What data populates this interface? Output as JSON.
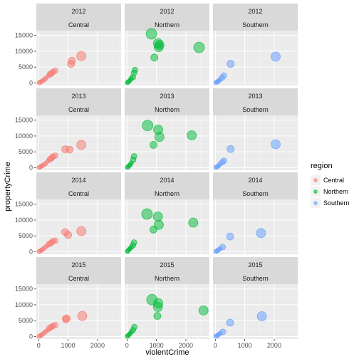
{
  "chart_data": {
    "type": "scatter",
    "facet_rows": [
      "2012",
      "2013",
      "2014",
      "2015"
    ],
    "facet_cols": [
      "Central",
      "Northern",
      "Southern"
    ],
    "xlabel": "violentCrime",
    "ylabel": "propertyCrime",
    "xlim": [
      -80,
      2800
    ],
    "ylim": [
      -800,
      16500
    ],
    "x_ticks": [
      0,
      1000,
      2000
    ],
    "y_ticks": [
      0,
      5000,
      10000,
      15000
    ],
    "grid": true,
    "legend": {
      "title": "region",
      "position": "right",
      "entries": [
        "Central",
        "Northern",
        "Southern"
      ]
    },
    "colors": {
      "Central": "#f8766d",
      "Northern": "#00ba38",
      "Southern": "#619cff"
    },
    "point_alpha": 0.5,
    "size_note": "point size encodes population (larger = bigger city)",
    "series": [
      {
        "year": "2012",
        "region": "Central",
        "points": [
          [
            20,
            100,
            1
          ],
          [
            60,
            300,
            1
          ],
          [
            120,
            600,
            1
          ],
          [
            180,
            900,
            1
          ],
          [
            230,
            1400,
            1
          ],
          [
            300,
            2000,
            1
          ],
          [
            380,
            2700,
            2
          ],
          [
            430,
            3000,
            2
          ],
          [
            480,
            3400,
            2
          ],
          [
            560,
            3900,
            2
          ],
          [
            1100,
            6000,
            3
          ],
          [
            1130,
            7000,
            3
          ],
          [
            1450,
            8500,
            4
          ]
        ]
      },
      {
        "year": "2012",
        "region": "Northern",
        "points": [
          [
            10,
            100,
            1
          ],
          [
            40,
            300,
            1
          ],
          [
            80,
            600,
            1
          ],
          [
            110,
            1000,
            1
          ],
          [
            150,
            1500,
            1
          ],
          [
            200,
            1800,
            2
          ],
          [
            240,
            3200,
            2
          ],
          [
            270,
            4100,
            2
          ],
          [
            930,
            8000,
            3
          ],
          [
            1050,
            12500,
            4
          ],
          [
            1080,
            11300,
            4
          ],
          [
            1100,
            12000,
            4
          ],
          [
            830,
            15500,
            5
          ],
          [
            2450,
            11200,
            5
          ]
        ]
      },
      {
        "year": "2012",
        "region": "Southern",
        "points": [
          [
            20,
            100,
            1
          ],
          [
            60,
            300,
            1
          ],
          [
            110,
            600,
            1
          ],
          [
            150,
            1000,
            1
          ],
          [
            220,
            1600,
            2
          ],
          [
            290,
            2300,
            2
          ],
          [
            520,
            6000,
            3
          ],
          [
            2050,
            8300,
            4
          ]
        ]
      },
      {
        "year": "2013",
        "region": "Central",
        "points": [
          [
            20,
            100,
            1
          ],
          [
            60,
            300,
            1
          ],
          [
            110,
            600,
            1
          ],
          [
            170,
            900,
            1
          ],
          [
            230,
            1300,
            1
          ],
          [
            300,
            2000,
            1
          ],
          [
            380,
            2600,
            2
          ],
          [
            430,
            3000,
            2
          ],
          [
            480,
            3500,
            2
          ],
          [
            560,
            3800,
            2
          ],
          [
            900,
            5800,
            3
          ],
          [
            1050,
            5700,
            3
          ],
          [
            1450,
            7200,
            4
          ]
        ]
      },
      {
        "year": "2013",
        "region": "Northern",
        "points": [
          [
            10,
            100,
            1
          ],
          [
            40,
            300,
            1
          ],
          [
            80,
            700,
            1
          ],
          [
            110,
            1000,
            1
          ],
          [
            150,
            1500,
            1
          ],
          [
            210,
            2500,
            2
          ],
          [
            240,
            3600,
            2
          ],
          [
            900,
            7200,
            3
          ],
          [
            1060,
            12000,
            4
          ],
          [
            1100,
            9700,
            4
          ],
          [
            700,
            13300,
            5
          ],
          [
            2200,
            10200,
            4
          ]
        ]
      },
      {
        "year": "2013",
        "region": "Southern",
        "points": [
          [
            20,
            100,
            1
          ],
          [
            60,
            300,
            1
          ],
          [
            110,
            600,
            1
          ],
          [
            150,
            1100,
            1
          ],
          [
            230,
            1700,
            2
          ],
          [
            290,
            2200,
            2
          ],
          [
            520,
            5900,
            3
          ],
          [
            2050,
            7400,
            4
          ]
        ]
      },
      {
        "year": "2014",
        "region": "Central",
        "points": [
          [
            20,
            100,
            1
          ],
          [
            60,
            300,
            1
          ],
          [
            110,
            600,
            1
          ],
          [
            170,
            1000,
            1
          ],
          [
            230,
            1500,
            1
          ],
          [
            300,
            2000,
            1
          ],
          [
            360,
            2500,
            2
          ],
          [
            420,
            2800,
            2
          ],
          [
            480,
            3300,
            2
          ],
          [
            560,
            3500,
            2
          ],
          [
            900,
            6200,
            3
          ],
          [
            1000,
            5300,
            3
          ],
          [
            1450,
            6500,
            4
          ]
        ]
      },
      {
        "year": "2014",
        "region": "Northern",
        "points": [
          [
            10,
            100,
            1
          ],
          [
            40,
            400,
            1
          ],
          [
            80,
            800,
            1
          ],
          [
            110,
            1100,
            1
          ],
          [
            150,
            1500,
            1
          ],
          [
            200,
            2000,
            2
          ],
          [
            240,
            2900,
            2
          ],
          [
            900,
            7000,
            3
          ],
          [
            1080,
            8500,
            4
          ],
          [
            1050,
            11100,
            4
          ],
          [
            680,
            11900,
            5
          ],
          [
            2250,
            9200,
            4
          ]
        ]
      },
      {
        "year": "2014",
        "region": "Southern",
        "points": [
          [
            20,
            100,
            1
          ],
          [
            60,
            300,
            1
          ],
          [
            110,
            600,
            1
          ],
          [
            160,
            1000,
            1
          ],
          [
            250,
            1500,
            2
          ],
          [
            500,
            4800,
            3
          ],
          [
            1550,
            5900,
            4
          ]
        ]
      },
      {
        "year": "2015",
        "region": "Central",
        "points": [
          [
            20,
            100,
            1
          ],
          [
            60,
            300,
            1
          ],
          [
            110,
            600,
            1
          ],
          [
            170,
            1000,
            1
          ],
          [
            230,
            1500,
            1
          ],
          [
            300,
            2000,
            1
          ],
          [
            360,
            2600,
            2
          ],
          [
            420,
            3000,
            2
          ],
          [
            480,
            3300,
            2
          ],
          [
            560,
            3600,
            2
          ],
          [
            920,
            5500,
            3
          ],
          [
            950,
            5700,
            3
          ],
          [
            1480,
            6500,
            4
          ]
        ]
      },
      {
        "year": "2015",
        "region": "Northern",
        "points": [
          [
            10,
            100,
            1
          ],
          [
            40,
            300,
            1
          ],
          [
            80,
            700,
            1
          ],
          [
            110,
            1000,
            1
          ],
          [
            150,
            1500,
            1
          ],
          [
            200,
            2000,
            2
          ],
          [
            250,
            3000,
            2
          ],
          [
            1030,
            6500,
            3
          ],
          [
            1050,
            9300,
            4
          ],
          [
            1060,
            10500,
            4
          ],
          [
            850,
            11600,
            5
          ],
          [
            2600,
            8200,
            4
          ]
        ]
      },
      {
        "year": "2015",
        "region": "Southern",
        "points": [
          [
            20,
            100,
            1
          ],
          [
            60,
            300,
            1
          ],
          [
            110,
            600,
            1
          ],
          [
            160,
            1000,
            1
          ],
          [
            260,
            1500,
            2
          ],
          [
            500,
            4400,
            3
          ],
          [
            1580,
            6400,
            4
          ]
        ]
      }
    ]
  }
}
